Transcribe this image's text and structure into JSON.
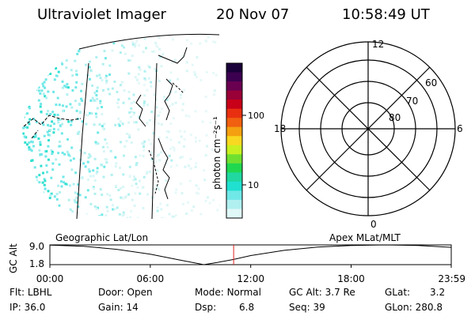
{
  "header": {
    "title": "Ultraviolet Imager",
    "date": "20 Nov 07",
    "time": "10:58:49 UT"
  },
  "map_labels": {
    "left": "Geographic Lat/Lon",
    "right": "Apex MLat/MLT"
  },
  "colorbar": {
    "unit_label": "photon cm⁻²s⁻¹",
    "ticks": [
      "100",
      "10"
    ],
    "colors": [
      "#1a0038",
      "#3c0050",
      "#6a0050",
      "#9a0038",
      "#c80018",
      "#e83010",
      "#f06010",
      "#f4a010",
      "#f8d820",
      "#c8f020",
      "#70e030",
      "#20d850",
      "#20d8a0",
      "#20e0d0",
      "#70e8e8",
      "#b0f0f0",
      "#e0f8f8"
    ]
  },
  "polar_grid": {
    "mlt_labels": [
      "12",
      "18",
      "6",
      "0"
    ],
    "lat_labels": [
      "60",
      "70",
      "80"
    ]
  },
  "chart_data": {
    "type": "line",
    "ylabel": "GC Alt",
    "ytick_labels": [
      "9.0",
      "1.8"
    ],
    "ylim": [
      1.8,
      9.0
    ],
    "xtick_labels": [
      "00:00",
      "06:00",
      "12:00",
      "18:00",
      "23:59"
    ],
    "xlim_hours": [
      0,
      23.983
    ],
    "marker_hour": 10.98,
    "series": [
      {
        "x": [
          0,
          2,
          4,
          6,
          8,
          9.2,
          10,
          10.98,
          12,
          14,
          16,
          18,
          20,
          22,
          23.983
        ],
        "y": [
          8.9,
          8.5,
          7.4,
          5.6,
          3.2,
          1.8,
          2.6,
          3.7,
          5.1,
          7.0,
          8.2,
          8.8,
          9.0,
          8.8,
          8.1
        ]
      }
    ]
  },
  "info": {
    "flt_label": "Flt:",
    "flt_value": "LBHL",
    "door_label": "Door:",
    "door_value": "Open",
    "mode_label": "Mode:",
    "mode_value": "Normal",
    "gcalt_label": "GC Alt:",
    "gcalt_value": "3.7 Re",
    "glat_label": "GLat:",
    "glat_value": "3.2",
    "ip_label": "IP:",
    "ip_value": "36.0",
    "gain_label": "Gain:",
    "gain_value": "14",
    "dsp_label": "Dsp:",
    "dsp_value": "6.8",
    "seq_label": "Seq:",
    "seq_value": "39",
    "glon_label": "GLon:",
    "glon_value": "280.8"
  }
}
